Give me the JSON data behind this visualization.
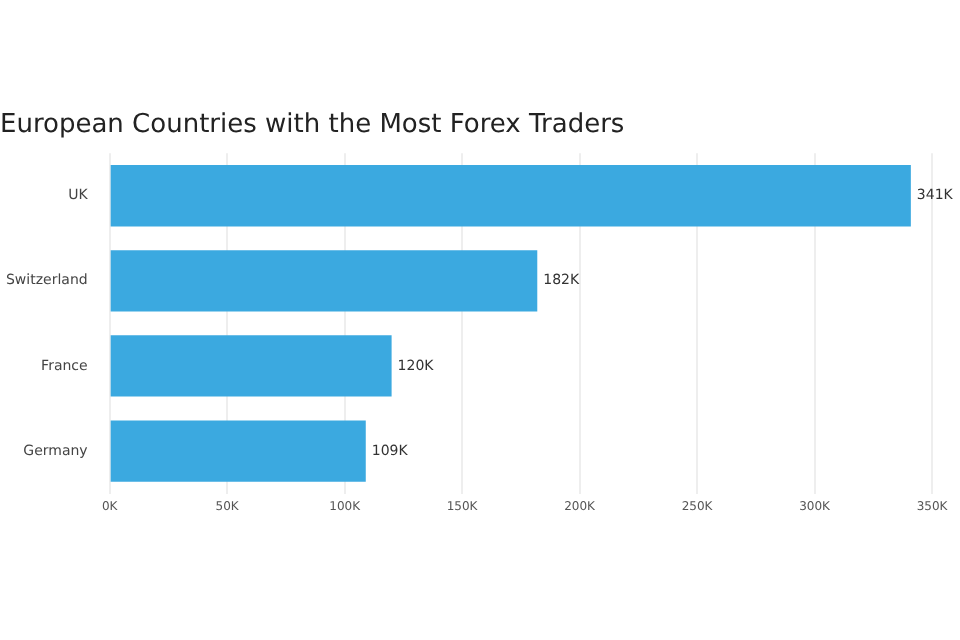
{
  "chart_data": {
    "type": "bar",
    "orientation": "horizontal",
    "title": "European Countries with the Most Forex Traders",
    "categories": [
      "UK",
      "Switzerland",
      "France",
      "Germany"
    ],
    "values": [
      341,
      182,
      120,
      109
    ],
    "value_labels": [
      "341K",
      "182K",
      "120K",
      "109K"
    ],
    "color": "#3ba9e0",
    "xlim": [
      0,
      350
    ],
    "xticks": [
      {
        "value": 0,
        "label": "0K"
      },
      {
        "value": 50,
        "label": "50K"
      },
      {
        "value": 100,
        "label": "100K"
      },
      {
        "value": 150,
        "label": "150K"
      },
      {
        "value": 200,
        "label": "200K"
      },
      {
        "value": 250,
        "label": "250K"
      },
      {
        "value": 300,
        "label": "300K"
      },
      {
        "value": 350,
        "label": "350K"
      }
    ],
    "grid": "x",
    "legend": false
  }
}
